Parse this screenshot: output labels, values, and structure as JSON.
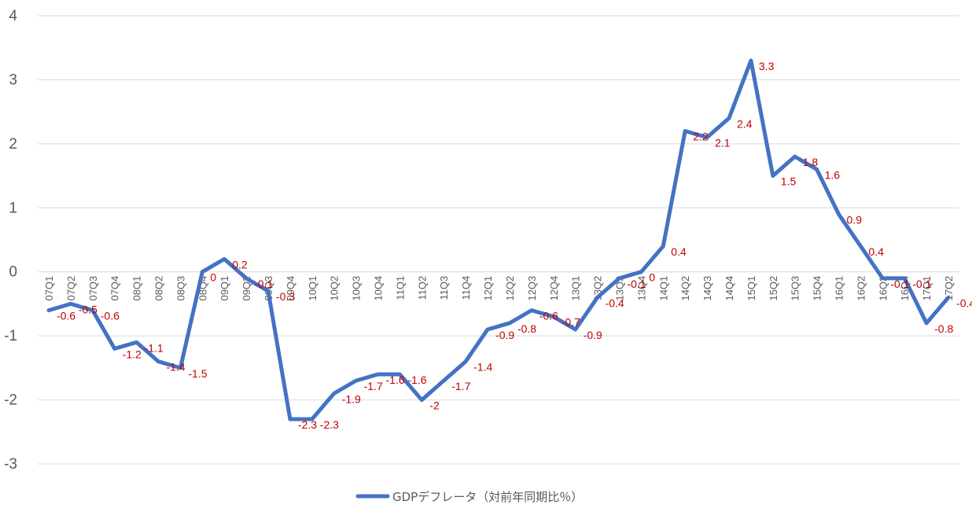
{
  "chart_data": {
    "type": "line",
    "title": "",
    "xlabel": "",
    "ylabel": "",
    "ylim": [
      -3,
      4
    ],
    "yticks": [
      "4",
      "3",
      "2",
      "1",
      "0",
      "-1",
      "-2",
      "-3"
    ],
    "grid": true,
    "legend_position": "bottom",
    "categories": [
      "07Q1",
      "07Q2",
      "07Q3",
      "07Q4",
      "08Q1",
      "08Q2",
      "08Q3",
      "08Q4",
      "09Q1",
      "09Q2",
      "09Q3",
      "09Q4",
      "10Q1",
      "10Q2",
      "10Q3",
      "10Q4",
      "11Q1",
      "11Q2",
      "11Q3",
      "11Q4",
      "12Q1",
      "12Q2",
      "12Q3",
      "12Q4",
      "13Q1",
      "13Q2",
      "13Q3",
      "13Q4",
      "14Q1",
      "14Q2",
      "14Q3",
      "14Q4",
      "15Q1",
      "15Q2",
      "15Q3",
      "15Q4",
      "16Q1",
      "16Q2",
      "16Q3",
      "16Q4",
      "17Q1",
      "17Q2"
    ],
    "series": [
      {
        "name": "GDPデフレータ（対前年同期比％）",
        "color": "#4472c4",
        "values": [
          -0.6,
          -0.5,
          -0.6,
          -1.2,
          -1.1,
          -1.4,
          -1.5,
          0,
          0.2,
          -0.1,
          -0.3,
          -2.3,
          -2.3,
          -1.9,
          -1.7,
          -1.6,
          -1.6,
          -2,
          -1.7,
          -1.4,
          -0.9,
          -0.8,
          -0.6,
          -0.7,
          -0.9,
          -0.4,
          -0.1,
          0,
          0.4,
          2.2,
          2.1,
          2.4,
          3.3,
          1.5,
          1.8,
          1.6,
          0.9,
          0.4,
          -0.1,
          -0.1,
          -0.8,
          -0.4
        ],
        "labels": [
          "-0.6",
          "-0.5",
          "-0.6",
          "-1.2",
          "-1.1",
          "-1.4",
          "-1.5",
          "0",
          "0.2",
          "-0.1",
          "-0.3",
          "-2.3",
          "-2.3",
          "-1.9",
          "-1.7",
          "-1.6",
          "-1.6",
          "-2",
          "-1.7",
          "-1.4",
          "-0.9",
          "-0.8",
          "-0.6",
          "-0.7",
          "-0.9",
          "-0.4",
          "-0.1",
          "0",
          "0.4",
          "2.2",
          "2.1",
          "2.4",
          "3.3",
          "1.5",
          "1.8",
          "1.6",
          "0.9",
          "0.4",
          "-0.1",
          "-0.1",
          "-0.8",
          "-0.4"
        ]
      }
    ],
    "data_label_color": "#c00000"
  }
}
